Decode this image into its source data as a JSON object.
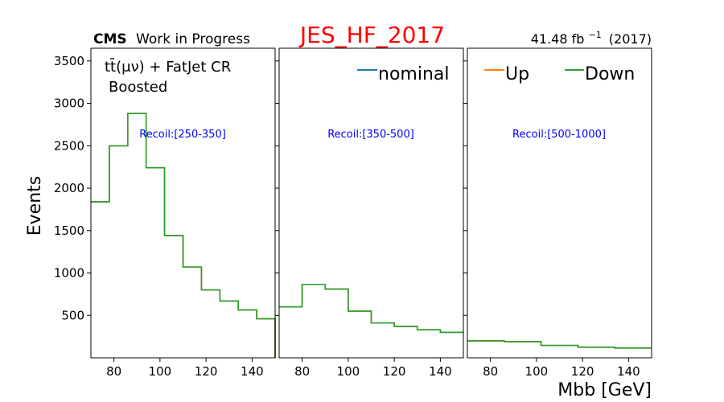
{
  "header": {
    "cms_bold": "CMS",
    "cms_rest": "Work in Progress",
    "plot_title": "JES_HF_2017",
    "lumi_value": "41.48 fb",
    "lumi_exp": "−1",
    "lumi_period": "(2017)"
  },
  "panel1_text": {
    "line1": "tt̄(μν) + FatJet CR",
    "line2": "Boosted"
  },
  "colors": {
    "title": "#ff0000",
    "region_label": "#0000ff",
    "nominal": "#1f77b4",
    "up": "#ff7f0e",
    "down": "#2ca02c"
  },
  "chart_data": [
    {
      "type": "line",
      "drawstyle": "step",
      "annotation": "Recoil:[250-350]",
      "ylabel": "Events",
      "xlim": [
        70,
        150
      ],
      "ylim": [
        0,
        3650
      ],
      "xticks": [
        80,
        100,
        120,
        140
      ],
      "yticks": [
        500,
        1000,
        1500,
        2000,
        2500,
        3000,
        3500
      ],
      "bin_edges": [
        70,
        78,
        86,
        94,
        102,
        110,
        118,
        126,
        134,
        142,
        150
      ],
      "series": [
        {
          "name": "nominal",
          "values": [
            1840,
            2500,
            2880,
            2240,
            1440,
            1070,
            800,
            670,
            565,
            460
          ]
        },
        {
          "name": "Up",
          "values": [
            1840,
            2500,
            2880,
            2240,
            1440,
            1070,
            800,
            670,
            565,
            460
          ]
        },
        {
          "name": "Down",
          "values": [
            1840,
            2500,
            2880,
            2240,
            1440,
            1070,
            800,
            670,
            565,
            460
          ]
        }
      ]
    },
    {
      "type": "line",
      "drawstyle": "step",
      "annotation": "Recoil:[350-500]",
      "xlim": [
        70,
        150
      ],
      "ylim": [
        0,
        3650
      ],
      "xticks": [
        80,
        100,
        120,
        140
      ],
      "bin_edges": [
        70,
        80,
        90,
        100,
        110,
        120,
        130,
        140,
        150
      ],
      "series": [
        {
          "name": "nominal",
          "values": [
            600,
            865,
            810,
            550,
            410,
            370,
            330,
            300
          ]
        },
        {
          "name": "Up",
          "values": [
            600,
            865,
            810,
            550,
            410,
            370,
            330,
            300
          ]
        },
        {
          "name": "Down",
          "values": [
            600,
            865,
            810,
            550,
            410,
            370,
            330,
            300
          ]
        }
      ]
    },
    {
      "type": "line",
      "drawstyle": "step",
      "annotation": "Recoil:[500-1000]",
      "xlabel": "Mbb [GeV]",
      "xlim": [
        70,
        150
      ],
      "ylim": [
        0,
        3650
      ],
      "xticks": [
        80,
        100,
        120,
        140
      ],
      "bin_edges": [
        70,
        86,
        102,
        118,
        134,
        150
      ],
      "series": [
        {
          "name": "nominal",
          "values": [
            200,
            190,
            145,
            125,
            115
          ]
        },
        {
          "name": "Up",
          "values": [
            200,
            190,
            145,
            125,
            115
          ]
        },
        {
          "name": "Down",
          "values": [
            200,
            190,
            145,
            125,
            115
          ]
        }
      ]
    }
  ]
}
